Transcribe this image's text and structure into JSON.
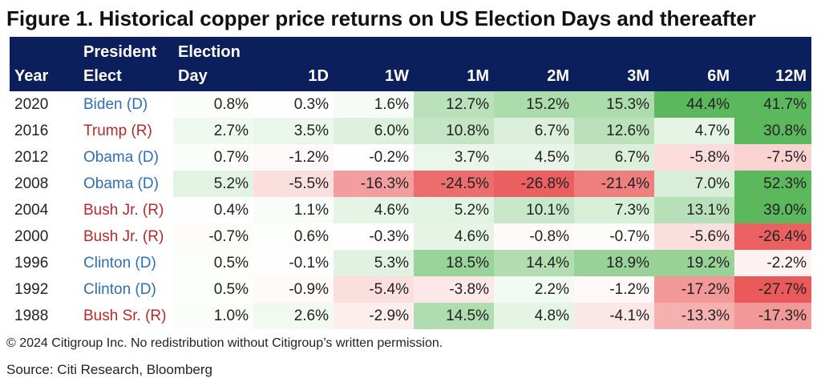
{
  "chart_data": {
    "type": "table",
    "title": "Figure 1. Historical copper price returns on US Election Days and thereafter",
    "columns": [
      {
        "key": "year",
        "line1": "",
        "line2": "Year",
        "align": "left"
      },
      {
        "key": "president",
        "line1": "President",
        "line2": "Elect",
        "align": "left"
      },
      {
        "key": "election_day",
        "line1": "Election",
        "line2": "Day",
        "align": "left"
      },
      {
        "key": "1D",
        "line1": "",
        "line2": "1D",
        "align": "right"
      },
      {
        "key": "1W",
        "line1": "",
        "line2": "1W",
        "align": "right"
      },
      {
        "key": "1M",
        "line1": "",
        "line2": "1M",
        "align": "right"
      },
      {
        "key": "2M",
        "line1": "",
        "line2": "2M",
        "align": "right"
      },
      {
        "key": "3M",
        "line1": "",
        "line2": "3M",
        "align": "right"
      },
      {
        "key": "6M",
        "line1": "",
        "line2": "6M",
        "align": "right"
      },
      {
        "key": "12M",
        "line1": "",
        "line2": "12M",
        "align": "right"
      }
    ],
    "rows": [
      {
        "year": "2020",
        "president": "Biden (D)",
        "party": "D",
        "values": [
          0.8,
          0.3,
          1.6,
          12.7,
          15.2,
          15.3,
          44.4,
          41.7
        ]
      },
      {
        "year": "2016",
        "president": "Trump (R)",
        "party": "R",
        "values": [
          2.7,
          3.5,
          6.0,
          10.8,
          6.7,
          12.6,
          4.7,
          30.8
        ]
      },
      {
        "year": "2012",
        "president": "Obama (D)",
        "party": "D",
        "values": [
          0.7,
          -1.2,
          -0.2,
          3.7,
          4.5,
          6.7,
          -5.8,
          -7.5
        ]
      },
      {
        "year": "2008",
        "president": "Obama (D)",
        "party": "D",
        "values": [
          5.2,
          -5.5,
          -16.3,
          -24.5,
          -26.8,
          -21.4,
          7.0,
          52.3
        ]
      },
      {
        "year": "2004",
        "president": "Bush Jr. (R)",
        "party": "R",
        "values": [
          0.4,
          1.1,
          4.6,
          5.2,
          10.1,
          7.3,
          13.1,
          39.0
        ]
      },
      {
        "year": "2000",
        "president": "Bush Jr. (R)",
        "party": "R",
        "values": [
          -0.7,
          0.6,
          -0.3,
          4.6,
          -0.8,
          -0.7,
          -5.6,
          -26.4
        ]
      },
      {
        "year": "1996",
        "president": "Clinton (D)",
        "party": "D",
        "values": [
          0.5,
          -0.1,
          5.3,
          18.5,
          14.4,
          18.9,
          19.2,
          -2.2
        ]
      },
      {
        "year": "1992",
        "president": "Clinton (D)",
        "party": "D",
        "values": [
          0.5,
          -0.9,
          -5.4,
          -3.8,
          2.2,
          -1.2,
          -17.2,
          -27.7
        ]
      },
      {
        "year": "1988",
        "president": "Bush Sr. (R)",
        "party": "R",
        "values": [
          1.0,
          2.6,
          -2.9,
          14.5,
          4.8,
          -4.1,
          -13.3,
          -17.3
        ]
      }
    ],
    "unit": "%",
    "decimals": 1
  },
  "colors": {
    "header_bg": "#0b1f5c",
    "header_text": "#ffffff",
    "party_d": "#2e6fb5",
    "party_r": "#b52a2a",
    "positive_max": "#5cb85c",
    "negative_max": "#e84c4c",
    "neutral": "#ffffff",
    "scale_max_abs": 30
  },
  "footer": {
    "copyright": "© 2024 Citigroup Inc. No redistribution without Citigroup’s written permission.",
    "source": "Source: Citi Research, Bloomberg"
  }
}
